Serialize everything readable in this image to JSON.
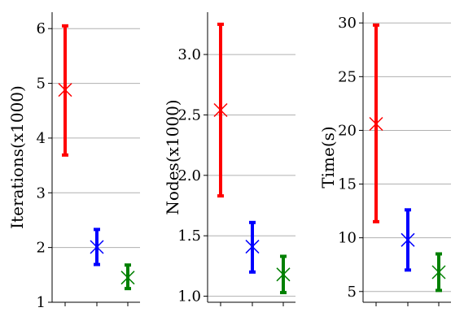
{
  "chart_data": [
    {
      "type": "errorbar",
      "ylabel": "Iterations(x1000)",
      "ylim": [
        1,
        6.3
      ],
      "yticks": [
        1,
        2,
        3,
        4,
        5,
        6
      ],
      "grid": "y",
      "marker": "x",
      "points": [
        {
          "color": "#ff0000",
          "mean": 4.88,
          "low": 3.69,
          "high": 6.05
        },
        {
          "color": "#0000ff",
          "mean": 2.01,
          "low": 1.69,
          "high": 2.33
        },
        {
          "color": "#008000",
          "mean": 1.45,
          "low": 1.25,
          "high": 1.68
        }
      ]
    },
    {
      "type": "errorbar",
      "ylabel": "Nodes(x1000)",
      "ylim": [
        0.95,
        3.35
      ],
      "yticks": [
        1.0,
        1.5,
        2.0,
        2.5,
        3.0
      ],
      "yticklabels": [
        "1.0",
        "1.5",
        "2.0",
        "2.5",
        "3.0"
      ],
      "grid": "y",
      "marker": "x",
      "points": [
        {
          "color": "#ff0000",
          "mean": 2.54,
          "low": 1.83,
          "high": 3.25
        },
        {
          "color": "#0000ff",
          "mean": 1.41,
          "low": 1.2,
          "high": 1.61
        },
        {
          "color": "#008000",
          "mean": 1.18,
          "low": 1.03,
          "high": 1.33
        }
      ]
    },
    {
      "type": "errorbar",
      "ylabel": "Time(s)",
      "ylim": [
        4.0,
        31.0
      ],
      "yticks": [
        5,
        10,
        15,
        20,
        25,
        30
      ],
      "grid": "y",
      "marker": "x",
      "points": [
        {
          "color": "#ff0000",
          "mean": 20.6,
          "low": 11.5,
          "high": 29.8
        },
        {
          "color": "#0000ff",
          "mean": 9.8,
          "low": 7.0,
          "high": 12.6
        },
        {
          "color": "#008000",
          "mean": 6.8,
          "low": 5.1,
          "high": 8.5
        }
      ]
    }
  ]
}
